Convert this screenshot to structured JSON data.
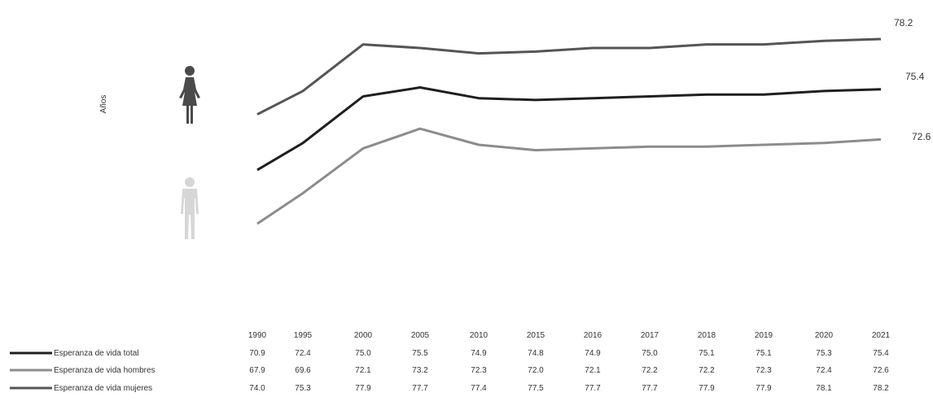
{
  "chart_data": {
    "type": "line",
    "categories": [
      "1990",
      "1995",
      "2000",
      "2005",
      "2010",
      "2015",
      "2016",
      "2017",
      "2018",
      "2019",
      "2020",
      "2021"
    ],
    "series": [
      {
        "name": "Esperanza de vida total",
        "color": "#1f1f1f",
        "values": [
          70.9,
          72.4,
          75.0,
          75.5,
          74.9,
          74.8,
          74.9,
          75.0,
          75.1,
          75.1,
          75.3,
          75.4
        ]
      },
      {
        "name": "Esperanza de vida hombres",
        "color": "#8c8c8c",
        "values": [
          67.9,
          69.6,
          72.1,
          73.2,
          72.3,
          72.0,
          72.1,
          72.2,
          72.2,
          72.3,
          72.4,
          72.6
        ]
      },
      {
        "name": "Esperanza de vida mujeres",
        "color": "#555555",
        "values": [
          74.0,
          75.3,
          77.9,
          77.7,
          77.4,
          77.5,
          77.7,
          77.7,
          77.9,
          77.9,
          78.1,
          78.2
        ]
      }
    ],
    "end_labels": [
      "78.2",
      "75.4",
      "72.6"
    ],
    "side_label": "Años",
    "legend_placement": "bottom-left",
    "grid": false,
    "icons": [
      {
        "name": "woman-icon",
        "color": "#4a4a4a"
      },
      {
        "name": "man-icon",
        "color": "#d0d0d0"
      }
    ]
  }
}
